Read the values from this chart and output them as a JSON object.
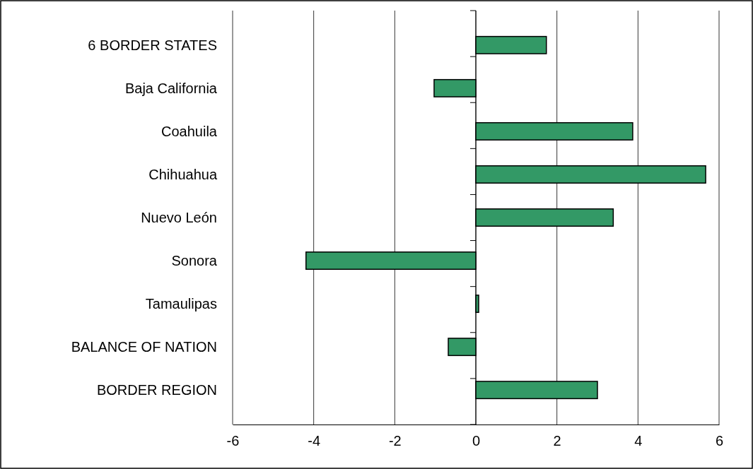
{
  "chart_data": {
    "type": "bar",
    "orientation": "horizontal",
    "categories": [
      "6 BORDER STATES",
      "Baja California",
      "Coahuila",
      "Chihuahua",
      "Nuevo León",
      "Sonora",
      "Tamaulipas",
      "BALANCE OF NATION",
      "BORDER REGION"
    ],
    "values": [
      1.74,
      -1.03,
      3.87,
      5.67,
      3.39,
      -4.19,
      0.07,
      -0.68,
      3.0
    ],
    "color": "#339966",
    "xlim": [
      -6,
      6
    ],
    "xticks": [
      -6,
      -4,
      -2,
      0,
      2,
      4,
      6
    ],
    "grid": "x"
  }
}
